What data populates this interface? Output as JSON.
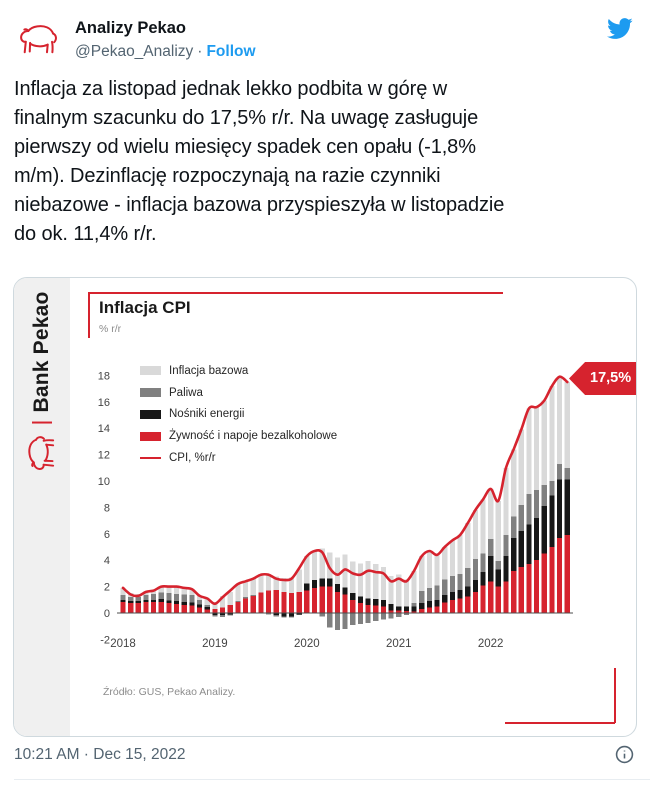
{
  "tweet": {
    "author_name": "Analizy Pekao",
    "author_handle": "@Pekao_Analizy",
    "separator": "·",
    "follow_label": "Follow",
    "body_lines": [
      "Inflacja za listopad jednak lekko podbita w górę w",
      "finalnym szacunku do 17,5% r/r. Na uwagę zasługuje",
      "pierwszy od wielu miesięcy spadek cen opału (-1,8%",
      "m/m). Dezinflację rozpoczynają na razie czynniki",
      "niebazowe - inflacja bazowa przyspieszyła w listopadzie",
      "do ok. 11,4% r/r."
    ],
    "timestamp": "10:21 AM · Dec 15, 2022"
  },
  "card": {
    "brand": "Bank Pekao",
    "title": "Inflacja CPI",
    "subtitle": "% r/r",
    "source": "Źródło: GUS, Pekao Analizy.",
    "callout": "17,5%"
  },
  "colors": {
    "brand_red": "#d6232e",
    "bar_core": "#d9d9d9",
    "bar_fuel": "#808080",
    "bar_energy": "#171717",
    "bar_food": "#d6232e",
    "follow_blue": "#1d9bf0",
    "twitter_blue": "#1d9bf0",
    "text_primary": "#0f1419",
    "text_secondary": "#536471"
  },
  "chart_data": {
    "type": "bar",
    "stacked": true,
    "title": "Inflacja CPI",
    "ylabel": "% r/r",
    "ylim": [
      -2,
      18
    ],
    "yticks": [
      -2,
      0,
      2,
      4,
      6,
      8,
      10,
      12,
      14,
      16,
      18
    ],
    "grid": false,
    "legend_position": "top-left",
    "x": [
      "2018-01",
      "2018-02",
      "2018-03",
      "2018-04",
      "2018-05",
      "2018-06",
      "2018-07",
      "2018-08",
      "2018-09",
      "2018-10",
      "2018-11",
      "2018-12",
      "2019-01",
      "2019-02",
      "2019-03",
      "2019-04",
      "2019-05",
      "2019-06",
      "2019-07",
      "2019-08",
      "2019-09",
      "2019-10",
      "2019-11",
      "2019-12",
      "2020-01",
      "2020-02",
      "2020-03",
      "2020-04",
      "2020-05",
      "2020-06",
      "2020-07",
      "2020-08",
      "2020-09",
      "2020-10",
      "2020-11",
      "2020-12",
      "2021-01",
      "2021-02",
      "2021-03",
      "2021-04",
      "2021-05",
      "2021-06",
      "2021-07",
      "2021-08",
      "2021-09",
      "2021-10",
      "2021-11",
      "2021-12",
      "2022-01",
      "2022-02",
      "2022-03",
      "2022-04",
      "2022-05",
      "2022-06",
      "2022-07",
      "2022-08",
      "2022-09",
      "2022-10",
      "2022-11"
    ],
    "year_ticks": [
      "2018",
      "2019",
      "2020",
      "2021",
      "2022"
    ],
    "year_tick_positions": [
      0,
      12,
      24,
      36,
      48
    ],
    "series": [
      {
        "name": "Żywność i napoje bezalkoholowe",
        "color": "#d6232e",
        "values": [
          0.85,
          0.75,
          0.75,
          0.85,
          0.85,
          0.85,
          0.75,
          0.7,
          0.6,
          0.55,
          0.4,
          0.25,
          0.3,
          0.4,
          0.6,
          0.85,
          1.1,
          1.3,
          1.55,
          1.7,
          1.75,
          1.6,
          1.5,
          1.6,
          1.7,
          1.9,
          2.0,
          2.0,
          1.6,
          1.4,
          1.0,
          0.75,
          0.6,
          0.55,
          0.5,
          0.2,
          0.2,
          0.15,
          0.1,
          0.3,
          0.4,
          0.5,
          0.8,
          1.0,
          1.1,
          1.25,
          1.6,
          2.1,
          2.4,
          2.0,
          2.4,
          3.2,
          3.5,
          3.7,
          4.0,
          4.5,
          5.0,
          5.7,
          5.9
        ]
      },
      {
        "name": "Nośniki energii",
        "color": "#171717",
        "values": [
          0.15,
          0.15,
          0.15,
          0.15,
          0.15,
          0.2,
          0.2,
          0.2,
          0.25,
          0.25,
          0.25,
          0.2,
          -0.15,
          -0.15,
          -0.1,
          -0.05,
          0.0,
          0.0,
          0.0,
          -0.05,
          -0.15,
          -0.25,
          -0.25,
          -0.1,
          0.55,
          0.6,
          0.6,
          0.6,
          0.6,
          0.55,
          0.5,
          0.5,
          0.5,
          0.5,
          0.5,
          0.5,
          0.3,
          0.35,
          0.4,
          0.45,
          0.5,
          0.5,
          0.55,
          0.6,
          0.65,
          0.75,
          0.9,
          1.0,
          1.9,
          1.3,
          1.9,
          2.5,
          2.7,
          3.0,
          3.2,
          3.6,
          3.9,
          4.4,
          4.2
        ]
      },
      {
        "name": "Paliwa",
        "color": "#808080",
        "values": [
          0.35,
          0.3,
          0.3,
          0.35,
          0.45,
          0.5,
          0.55,
          0.55,
          0.55,
          0.55,
          0.35,
          0.15,
          -0.1,
          -0.15,
          -0.1,
          0.05,
          0.1,
          0.05,
          0.0,
          -0.05,
          -0.1,
          -0.1,
          -0.1,
          -0.05,
          0.0,
          -0.05,
          -0.25,
          -1.1,
          -1.3,
          -1.2,
          -0.9,
          -0.85,
          -0.75,
          -0.6,
          -0.5,
          -0.4,
          -0.3,
          -0.15,
          0.25,
          0.9,
          1.0,
          1.1,
          1.2,
          1.2,
          1.2,
          1.4,
          1.6,
          1.4,
          1.3,
          0.65,
          1.6,
          1.6,
          2.0,
          2.3,
          2.1,
          1.6,
          1.1,
          1.2,
          0.9
        ]
      },
      {
        "name": "Inflacja bazowa",
        "color": "#d9d9d9",
        "values": [
          0.55,
          0.3,
          0.25,
          0.3,
          0.3,
          0.4,
          0.5,
          0.55,
          0.5,
          0.45,
          0.3,
          0.5,
          0.55,
          0.9,
          1.0,
          1.3,
          1.2,
          1.25,
          1.35,
          1.25,
          1.0,
          1.05,
          1.2,
          1.7,
          2.05,
          2.25,
          2.3,
          2.0,
          2.0,
          2.5,
          2.4,
          2.5,
          2.85,
          2.65,
          2.5,
          2.1,
          2.4,
          2.05,
          2.45,
          2.65,
          2.8,
          2.3,
          2.45,
          2.7,
          2.95,
          3.4,
          3.7,
          4.1,
          3.8,
          4.55,
          5.1,
          5.1,
          5.7,
          6.5,
          6.3,
          6.4,
          7.2,
          6.6,
          6.5
        ]
      }
    ],
    "line": {
      "name": "CPI, %r/r",
      "color": "#d6232e",
      "values": [
        1.9,
        1.4,
        1.3,
        1.6,
        1.7,
        2.0,
        2.0,
        2.0,
        1.9,
        1.8,
        1.3,
        1.1,
        0.7,
        1.2,
        1.7,
        2.2,
        2.4,
        2.6,
        2.9,
        2.9,
        2.6,
        2.5,
        2.6,
        3.4,
        4.3,
        4.7,
        4.6,
        3.4,
        2.9,
        3.3,
        3.0,
        2.9,
        3.2,
        3.1,
        3.0,
        2.4,
        2.6,
        2.4,
        3.2,
        4.3,
        4.7,
        4.4,
        5.0,
        5.5,
        5.9,
        6.8,
        7.8,
        8.6,
        9.4,
        8.5,
        11.0,
        12.4,
        13.9,
        15.5,
        15.6,
        16.1,
        17.2,
        17.9,
        17.5
      ]
    },
    "legend": [
      {
        "label": "Inflacja bazowa",
        "color": "#d9d9d9",
        "type": "box"
      },
      {
        "label": "Paliwa",
        "color": "#808080",
        "type": "box"
      },
      {
        "label": "Nośniki energii",
        "color": "#171717",
        "type": "box"
      },
      {
        "label": "Żywność i napoje bezalkoholowe",
        "color": "#d6232e",
        "type": "box"
      },
      {
        "label": "CPI, %r/r",
        "color": "#d6232e",
        "type": "line"
      }
    ],
    "annotation": {
      "label": "17,5%",
      "x": "2022-11",
      "y": 17.5
    }
  }
}
